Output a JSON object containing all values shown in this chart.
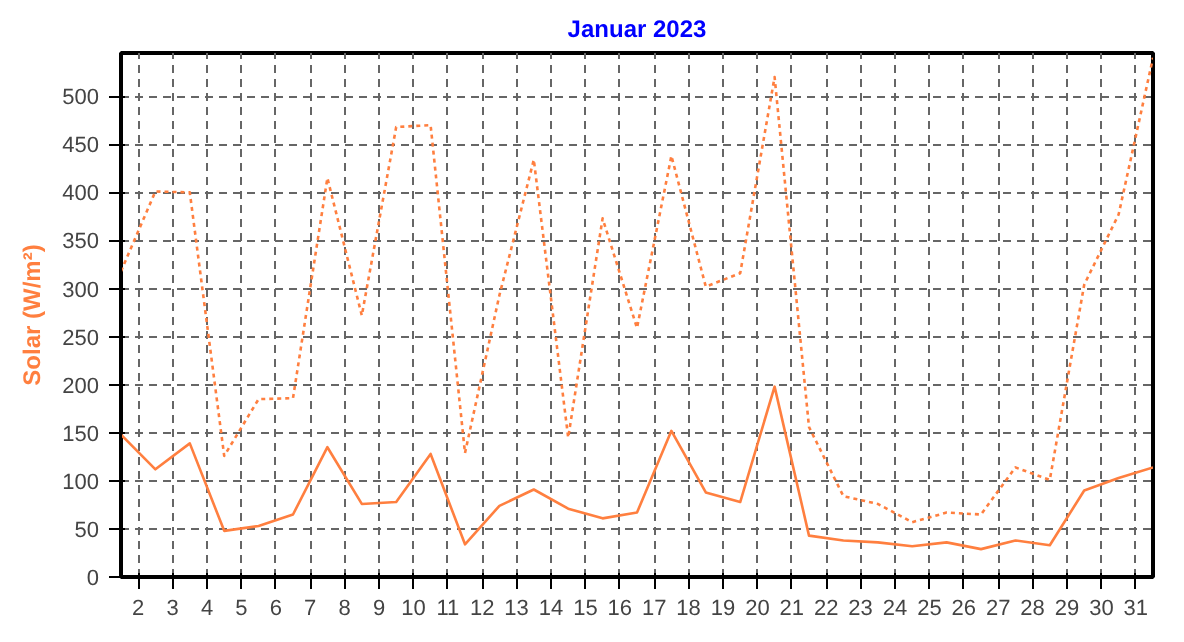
{
  "chart_data": {
    "type": "line",
    "title": "Januar 2023",
    "ylabel": "Solar (W/m²)",
    "x": [
      1.5,
      2.5,
      3.5,
      4.5,
      5.5,
      6.5,
      7.5,
      8.5,
      9.5,
      10.5,
      11.5,
      12.5,
      13.5,
      14.5,
      15.5,
      16.5,
      17.5,
      18.5,
      19.5,
      20.5,
      21.5,
      22.5,
      23.5,
      24.5,
      25.5,
      26.5,
      27.5,
      28.5,
      29.5,
      30.5,
      31.5
    ],
    "series": [
      {
        "color": "#ff7f3f",
        "line_style": "dotted",
        "values": [
          318,
          401,
          400,
          126,
          185,
          186,
          415,
          272,
          468,
          470,
          129,
          293,
          434,
          145,
          373,
          259,
          438,
          302,
          316,
          520,
          156,
          84,
          76,
          57,
          67,
          65,
          114,
          101,
          304,
          377,
          540
        ]
      },
      {
        "color": "#ff7f3f",
        "line_style": "solid",
        "values": [
          148,
          112,
          139,
          48,
          53,
          65,
          135,
          76,
          78,
          128,
          34,
          74,
          91,
          71,
          61,
          67,
          152,
          88,
          78,
          198,
          43,
          38,
          36,
          32,
          36,
          29,
          38,
          33,
          90,
          103,
          114
        ]
      }
    ],
    "xlim": [
      1.5,
      31.5
    ],
    "xticks": [
      2,
      3,
      4,
      5,
      6,
      7,
      8,
      9,
      10,
      11,
      12,
      13,
      14,
      15,
      16,
      17,
      18,
      19,
      20,
      21,
      22,
      23,
      24,
      25,
      26,
      27,
      28,
      29,
      30,
      31
    ],
    "ylim": [
      0,
      545
    ],
    "yticks": [
      0,
      50,
      100,
      150,
      200,
      250,
      300,
      350,
      400,
      450,
      500
    ],
    "grid": true,
    "marker": "none"
  }
}
